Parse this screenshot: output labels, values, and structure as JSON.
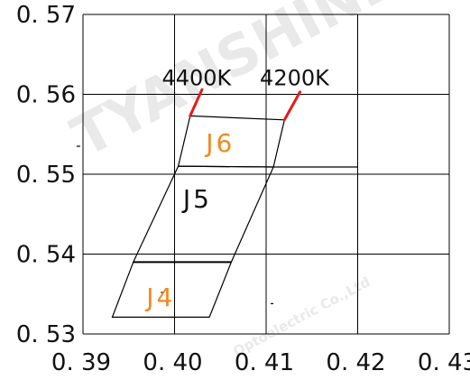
{
  "colors": {
    "grid": "#000000",
    "outline": "#000000",
    "iso_line": "#e31b1b",
    "label_orange": "#f08a24",
    "label_dark": "#111111"
  },
  "chart_data": {
    "type": "scatter",
    "title": "",
    "xlabel": "",
    "ylabel": "",
    "xlim": [
      0.39,
      0.43
    ],
    "ylim": [
      0.53,
      0.57
    ],
    "grid": true,
    "x_ticks": [
      0.39,
      0.4,
      0.41,
      0.42,
      0.43
    ],
    "y_ticks": [
      0.53,
      0.54,
      0.55,
      0.56,
      0.57
    ],
    "x_tick_labels": [
      "0. 39",
      "0. 40",
      "0. 41",
      "0. 42",
      "0. 43"
    ],
    "y_tick_labels": [
      "0. 53",
      "0. 54",
      "0. 55",
      "0. 56",
      "0. 57"
    ],
    "regions": [
      {
        "name": "J4",
        "color": "#f08a24",
        "label_x": 0.3985,
        "label_y": 0.5335,
        "points": [
          [
            0.3932,
            0.5321
          ],
          [
            0.4038,
            0.5321
          ],
          [
            0.4062,
            0.539
          ],
          [
            0.3955,
            0.539
          ]
        ]
      },
      {
        "name": "J5",
        "color": "#111111",
        "label_x": 0.4025,
        "label_y": 0.5458,
        "points": [
          [
            0.3955,
            0.539
          ],
          [
            0.4062,
            0.539
          ],
          [
            0.4108,
            0.5509
          ],
          [
            0.4004,
            0.551
          ]
        ]
      },
      {
        "name": "J6",
        "color": "#f08a24",
        "label_x": 0.405,
        "label_y": 0.5528,
        "points": [
          [
            0.4004,
            0.551
          ],
          [
            0.4108,
            0.5509
          ],
          [
            0.412,
            0.5568
          ],
          [
            0.4017,
            0.5573
          ]
        ]
      }
    ],
    "isotherms": [
      {
        "label": "4400K",
        "x1": 0.4017,
        "y1": 0.5573,
        "x2": 0.403,
        "y2": 0.5606,
        "label_x": 0.4024,
        "label_y": 0.5609
      },
      {
        "label": "4200K",
        "x1": 0.412,
        "y1": 0.5568,
        "x2": 0.4137,
        "y2": 0.5603,
        "label_x": 0.4131,
        "label_y": 0.5609
      }
    ],
    "segments": [
      {
        "x1": 0.4108,
        "y1": 0.5509,
        "x2": 0.42,
        "y2": 0.5509
      },
      {
        "x1": 0.3985,
        "y1": 0.5352,
        "x2": 0.3988,
        "y2": 0.5352
      },
      {
        "x1": 0.4105,
        "y1": 0.5338,
        "x2": 0.4108,
        "y2": 0.5338
      },
      {
        "x1": 0.3893,
        "y1": 0.5535,
        "x2": 0.3897,
        "y2": 0.5535
      }
    ]
  }
}
